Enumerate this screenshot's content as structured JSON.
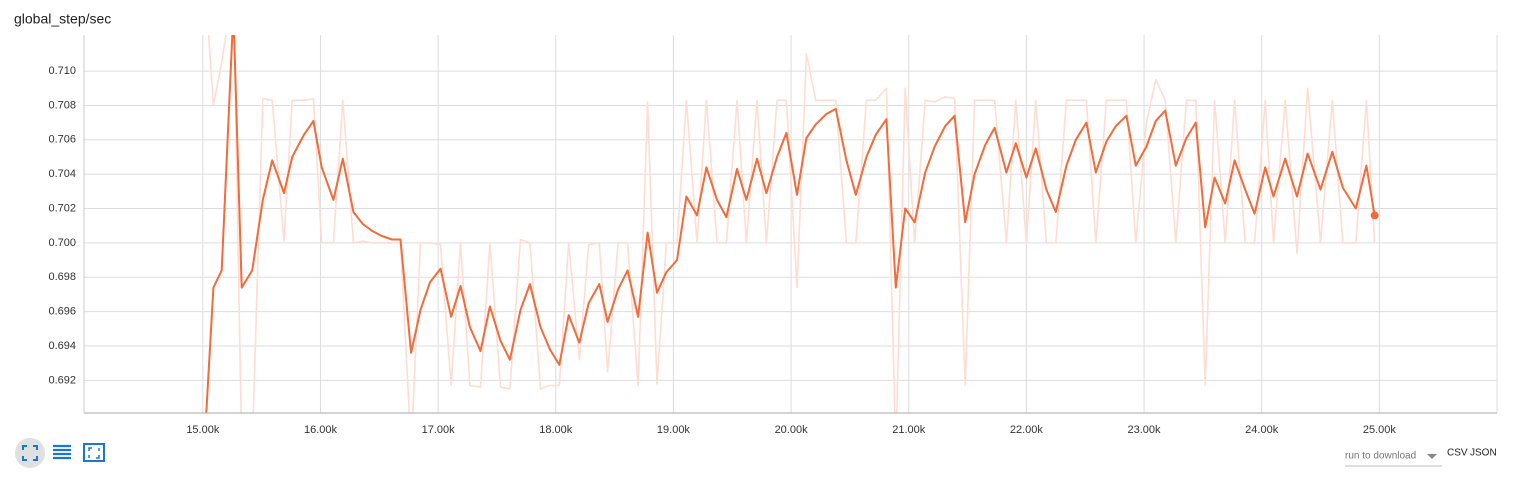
{
  "chart_data": {
    "type": "line",
    "title": "global_step/sec",
    "x": [
      15020,
      15090,
      15160,
      15260,
      15330,
      15420,
      15510,
      15590,
      15690,
      15760,
      15860,
      15940,
      16010,
      16110,
      16190,
      16280,
      16360,
      16440,
      16520,
      16610,
      16680,
      16770,
      16850,
      16930,
      17020,
      17110,
      17190,
      17270,
      17360,
      17440,
      17530,
      17610,
      17700,
      17780,
      17870,
      17950,
      18030,
      18110,
      18200,
      18280,
      18370,
      18440,
      18530,
      18610,
      18700,
      18780,
      18860,
      18940,
      19030,
      19110,
      19200,
      19280,
      19370,
      19450,
      19540,
      19620,
      19710,
      19790,
      19880,
      19960,
      20050,
      20130,
      20210,
      20300,
      20380,
      20470,
      20550,
      20640,
      20720,
      20810,
      20890,
      20970,
      21050,
      21140,
      21220,
      21310,
      21390,
      21480,
      21560,
      21650,
      21730,
      21830,
      21910,
      22000,
      22080,
      22170,
      22250,
      22340,
      22420,
      22510,
      22590,
      22680,
      22760,
      22850,
      22930,
      23020,
      23100,
      23180,
      23270,
      23360,
      23440,
      23520,
      23600,
      23690,
      23770,
      23860,
      23940,
      24030,
      24100,
      24200,
      24300,
      24390,
      24500,
      24600,
      24690,
      24800,
      24890,
      24960
    ],
    "series": [
      {
        "color": "#ffddd2",
        "values": [
          0.715,
          0.708,
          0.7105,
          0.715,
          0.688,
          0.688,
          0.7084,
          0.7083,
          0.7001,
          0.7083,
          0.7083,
          0.7084,
          0.7,
          0.7,
          0.7083,
          0.7,
          0.7001,
          0.7,
          0.7,
          0.7,
          0.7,
          0.688,
          0.7,
          0.7,
          0.6999,
          0.6917,
          0.7,
          0.6917,
          0.6916,
          0.7,
          0.6916,
          0.6915,
          0.7002,
          0.7,
          0.6915,
          0.6917,
          0.6917,
          0.7,
          0.6932,
          0.6999,
          0.7,
          0.6925,
          0.7,
          0.7,
          0.6917,
          0.7082,
          0.6918,
          0.7,
          0.7,
          0.7083,
          0.7,
          0.7083,
          0.7,
          0.7,
          0.7083,
          0.7,
          0.7083,
          0.7,
          0.7083,
          0.7083,
          0.6974,
          0.711,
          0.7083,
          0.7083,
          0.7083,
          0.7,
          0.7,
          0.7083,
          0.7083,
          0.709,
          0.688,
          0.709,
          0.7,
          0.7083,
          0.7082,
          0.7085,
          0.7084,
          0.6917,
          0.7083,
          0.7083,
          0.7083,
          0.7,
          0.7083,
          0.7,
          0.7083,
          0.7,
          0.7,
          0.7083,
          0.7083,
          0.7083,
          0.7,
          0.7083,
          0.7083,
          0.7083,
          0.7,
          0.707,
          0.7095,
          0.7083,
          0.7,
          0.7083,
          0.7083,
          0.6917,
          0.7083,
          0.7,
          0.7083,
          0.7,
          0.7,
          0.7083,
          0.7,
          0.7083,
          0.6994,
          0.709,
          0.7,
          0.7083,
          0.7,
          0.7,
          0.7083,
          0.7
        ]
      },
      {
        "color": "#f26b3a",
        "values": [
          0.689,
          0.6974,
          0.6984,
          0.7135,
          0.6974,
          0.6984,
          0.7025,
          0.7048,
          0.7029,
          0.705,
          0.7063,
          0.7071,
          0.7044,
          0.7025,
          0.7049,
          0.7018,
          0.7011,
          0.7007,
          0.7004,
          0.7002,
          0.7002,
          0.6936,
          0.6961,
          0.6977,
          0.6985,
          0.6957,
          0.6975,
          0.6951,
          0.6937,
          0.6963,
          0.6943,
          0.6932,
          0.6961,
          0.6976,
          0.6951,
          0.6938,
          0.6929,
          0.6958,
          0.6942,
          0.6965,
          0.6976,
          0.6954,
          0.6973,
          0.6984,
          0.6957,
          0.7006,
          0.6971,
          0.6983,
          0.699,
          0.7027,
          0.7016,
          0.7044,
          0.7025,
          0.7015,
          0.7043,
          0.7025,
          0.7049,
          0.7029,
          0.705,
          0.7064,
          0.7028,
          0.7061,
          0.7069,
          0.7075,
          0.7078,
          0.7048,
          0.7028,
          0.705,
          0.7063,
          0.7072,
          0.6974,
          0.702,
          0.7012,
          0.7041,
          0.7056,
          0.7068,
          0.7074,
          0.7012,
          0.704,
          0.7057,
          0.7067,
          0.7041,
          0.7058,
          0.7038,
          0.7055,
          0.7031,
          0.7018,
          0.7045,
          0.706,
          0.707,
          0.7041,
          0.7059,
          0.7068,
          0.7074,
          0.7045,
          0.7056,
          0.7071,
          0.7077,
          0.7045,
          0.7061,
          0.707,
          0.7009,
          0.7038,
          0.7023,
          0.7048,
          0.7031,
          0.7017,
          0.7044,
          0.7027,
          0.7049,
          0.7027,
          0.7052,
          0.7031,
          0.7053,
          0.7032,
          0.702,
          0.7045,
          0.7016
        ]
      }
    ],
    "xlim": [
      13990,
      26000
    ],
    "ylim": [
      0.6901,
      0.7121
    ],
    "xticks": [
      {
        "value": 15000,
        "label": "15.00k"
      },
      {
        "value": 16000,
        "label": "16.00k"
      },
      {
        "value": 17000,
        "label": "17.00k"
      },
      {
        "value": 18000,
        "label": "18.00k"
      },
      {
        "value": 19000,
        "label": "19.00k"
      },
      {
        "value": 20000,
        "label": "20.00k"
      },
      {
        "value": 21000,
        "label": "21.00k"
      },
      {
        "value": 22000,
        "label": "22.00k"
      },
      {
        "value": 23000,
        "label": "23.00k"
      },
      {
        "value": 24000,
        "label": "24.00k"
      },
      {
        "value": 25000,
        "label": "25.00k"
      }
    ],
    "yticks": [
      0.692,
      0.694,
      0.696,
      0.698,
      {
        "value": 0.7,
        "label": "0.700"
      },
      0.702,
      0.704,
      0.706,
      0.708,
      {
        "value": 0.71,
        "label": "0.710"
      }
    ],
    "grid": true
  },
  "controls": {
    "run_select": "run to download",
    "csv": "CSV",
    "json": "JSON"
  }
}
